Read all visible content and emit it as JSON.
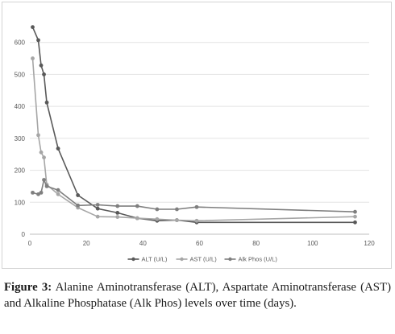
{
  "caption": {
    "label": "Figure 3:",
    "text": "Alanine Aminotransferase (ALT), Aspartate Aminotransferase (AST) and Alkaline Phosphatase (Alk Phos) levels over time (days)."
  },
  "chart_data": {
    "type": "line",
    "title": "",
    "xlabel": "",
    "ylabel": "",
    "xlim": [
      0,
      120
    ],
    "ylim": [
      0,
      700
    ],
    "x_ticks": [
      0,
      20,
      40,
      60,
      80,
      100,
      120
    ],
    "y_ticks": [
      0,
      100,
      200,
      300,
      400,
      500,
      600
    ],
    "grid": "horizontal",
    "legend_position": "bottom",
    "series": [
      {
        "name": "ALT (U/L)",
        "color": "#595959",
        "points": [
          [
            1,
            648
          ],
          [
            3,
            607
          ],
          [
            4,
            528
          ],
          [
            5,
            500
          ],
          [
            6,
            412
          ],
          [
            10,
            268
          ],
          [
            17,
            122
          ],
          [
            24,
            80
          ],
          [
            31,
            67
          ],
          [
            38,
            50
          ],
          [
            45,
            42
          ],
          [
            52,
            44
          ],
          [
            59,
            37
          ],
          [
            115,
            37
          ]
        ]
      },
      {
        "name": "AST (U/L)",
        "color": "#a6a6a6",
        "points": [
          [
            1,
            550
          ],
          [
            3,
            310
          ],
          [
            4,
            256
          ],
          [
            5,
            240
          ],
          [
            6,
            155
          ],
          [
            10,
            125
          ],
          [
            17,
            83
          ],
          [
            24,
            55
          ],
          [
            31,
            54
          ],
          [
            38,
            50
          ],
          [
            45,
            47
          ],
          [
            52,
            44
          ],
          [
            59,
            42
          ],
          [
            115,
            55
          ]
        ]
      },
      {
        "name": "Alk Phos (U/L)",
        "color": "#7f7f7f",
        "points": [
          [
            1,
            130
          ],
          [
            3,
            125
          ],
          [
            4,
            130
          ],
          [
            5,
            170
          ],
          [
            6,
            150
          ],
          [
            10,
            138
          ],
          [
            17,
            90
          ],
          [
            24,
            92
          ],
          [
            31,
            88
          ],
          [
            38,
            88
          ],
          [
            45,
            78
          ],
          [
            52,
            78
          ],
          [
            59,
            85
          ],
          [
            115,
            70
          ]
        ]
      }
    ]
  }
}
